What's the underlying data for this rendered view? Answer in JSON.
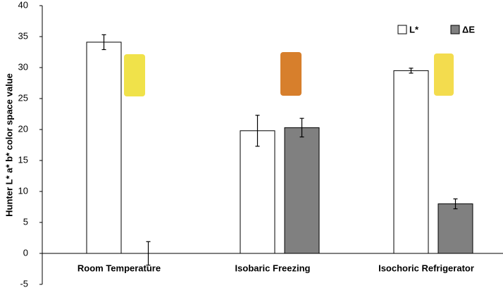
{
  "chart_data": {
    "type": "bar",
    "y_label": "Hunter L* a* b* color space value",
    "categories": [
      "Room Temperature",
      "Isobaric Freezing",
      "Isochoric Refrigerator"
    ],
    "series": [
      {
        "name": "L*",
        "color": "#ffffff",
        "values": [
          34.1,
          19.8,
          29.5
        ],
        "errors": [
          1.2,
          2.5,
          0.4
        ]
      },
      {
        "name": "ΔE",
        "color": "#808080",
        "values": [
          0,
          20.3,
          8.0
        ],
        "errors": [
          1.9,
          1.5,
          0.8
        ]
      }
    ],
    "ylim": [
      -5,
      40
    ],
    "yticks": [
      -5,
      0,
      5,
      10,
      15,
      20,
      25,
      30,
      35,
      40
    ],
    "grid": false,
    "legend": "top-right"
  }
}
